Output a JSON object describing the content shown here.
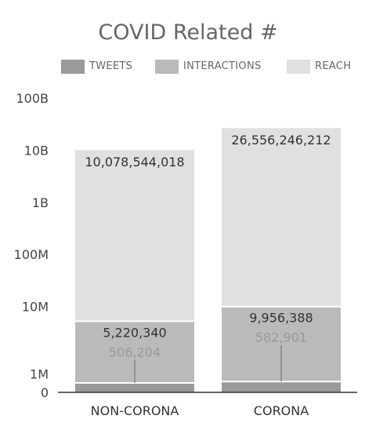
{
  "chart_data": {
    "type": "bar",
    "stacked": true,
    "title": "COVID Related #",
    "scale": "log",
    "y_ticks": [
      "0",
      "1M",
      "10M",
      "100M",
      "1B",
      "10B",
      "100B"
    ],
    "categories": [
      "NON-CORONA",
      "CORONA"
    ],
    "series": [
      {
        "name": "TWEETS",
        "values": [
          506204,
          582901
        ],
        "labels": [
          "506,204",
          "582,901"
        ],
        "color": "#9a9a9a"
      },
      {
        "name": "INTERACTIONS",
        "values": [
          5220340,
          9956388
        ],
        "labels": [
          "5,220,340",
          "9,956,388"
        ],
        "color": "#bababa"
      },
      {
        "name": "REACH",
        "values": [
          10078544018,
          26556246212
        ],
        "labels": [
          "10,078,544,018",
          "26,556,246,212"
        ],
        "color": "#e0e0e0"
      }
    ],
    "legend_position": "top",
    "grid": false
  }
}
